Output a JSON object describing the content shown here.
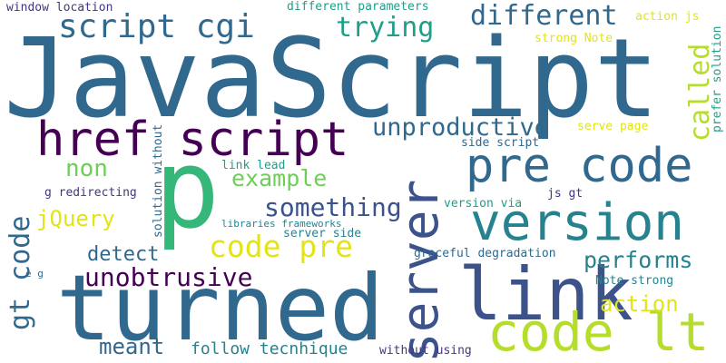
{
  "palette": {
    "navy": "#463480",
    "indigo": "#3b528b",
    "blue": "#31688e",
    "teal": "#26828e",
    "seagreen": "#1f9e89",
    "green": "#35b779",
    "lime": "#6ece58",
    "yellowgreen": "#b5de2b",
    "yellow": "#e2e418",
    "purple": "#440154",
    "violet": "#482878"
  },
  "words": [
    "JavaScript",
    "p",
    "turned",
    "server",
    "link",
    "version",
    "code lt",
    "pre code",
    "href script",
    "script cgi",
    "different",
    "trying",
    "called",
    "unproductive",
    "code pre",
    "something",
    "example",
    "non",
    "jQuery",
    "gt code",
    "detect",
    "unobtrusive",
    "performs",
    "action",
    "meant",
    "follow tecnhique",
    "without using",
    "graceful degradation",
    "server side",
    "libraries frameworks",
    "link lead",
    "solution without",
    "g redirecting",
    "e g",
    "side script",
    "version via",
    "js gt",
    "serve page",
    "Note strong",
    "strong Note",
    "prefer solution",
    "action js",
    "window location",
    "different parameters"
  ]
}
